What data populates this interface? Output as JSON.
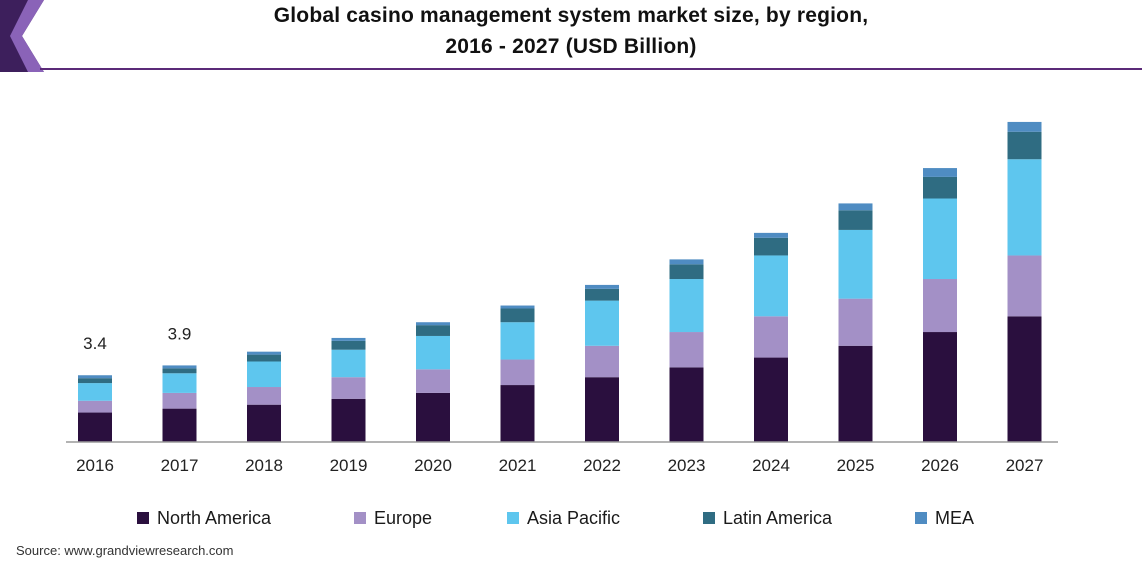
{
  "title": {
    "line1": "Global casino management system market size, by region,",
    "line2": "2016 - 2027 (USD Billion)"
  },
  "colors": {
    "header_accent_dark": "#3d1f5c",
    "header_accent_light": "#8a63b8",
    "header_rule": "#5b2a78",
    "axis": "#9a9a9a"
  },
  "chart_data": {
    "type": "bar",
    "stacked": true,
    "categories": [
      "2016",
      "2017",
      "2018",
      "2019",
      "2020",
      "2021",
      "2022",
      "2023",
      "2024",
      "2025",
      "2026",
      "2027"
    ],
    "series": [
      {
        "name": "North America",
        "color": "#2a0f3e",
        "values": [
          1.5,
          1.7,
          1.9,
          2.2,
          2.5,
          2.9,
          3.3,
          3.8,
          4.3,
          4.9,
          5.6,
          6.4
        ]
      },
      {
        "name": "Europe",
        "color": "#a390c6",
        "values": [
          0.6,
          0.8,
          0.9,
          1.1,
          1.2,
          1.3,
          1.6,
          1.8,
          2.1,
          2.4,
          2.7,
          3.1
        ]
      },
      {
        "name": "Asia Pacific",
        "color": "#5ec6ee",
        "values": [
          0.9,
          1.0,
          1.3,
          1.4,
          1.7,
          1.9,
          2.3,
          2.7,
          3.1,
          3.5,
          4.1,
          4.9
        ]
      },
      {
        "name": "Latin America",
        "color": "#2f6c82",
        "values": [
          0.25,
          0.25,
          0.35,
          0.45,
          0.55,
          0.7,
          0.6,
          0.75,
          0.9,
          1.0,
          1.1,
          1.4
        ]
      },
      {
        "name": "MEA",
        "color": "#4f8cc2",
        "values": [
          0.15,
          0.15,
          0.15,
          0.15,
          0.15,
          0.15,
          0.2,
          0.25,
          0.25,
          0.35,
          0.45,
          0.5
        ]
      }
    ],
    "data_labels": [
      {
        "category": "2016",
        "text": "3.4"
      },
      {
        "category": "2017",
        "text": "3.9"
      }
    ],
    "ylim": [
      0,
      16.5
    ],
    "grid": false,
    "legend_position": "bottom",
    "source": "Source: www.grandviewresearch.com"
  }
}
